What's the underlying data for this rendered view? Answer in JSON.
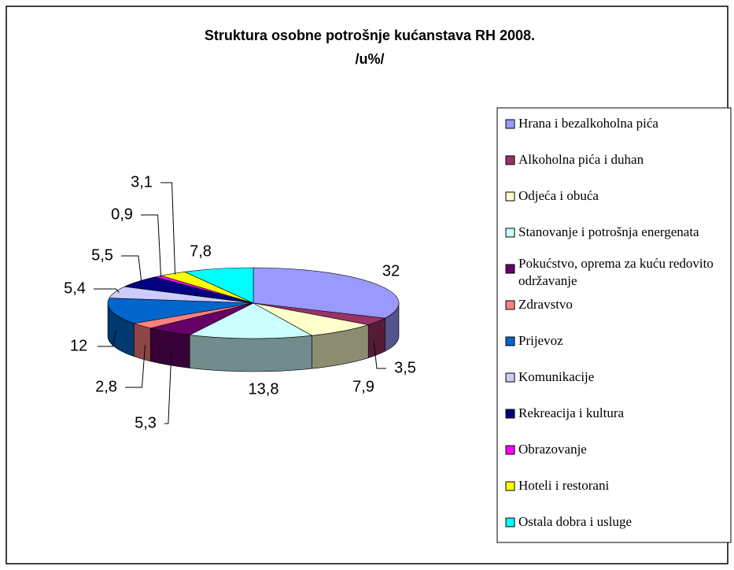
{
  "chart_data": {
    "type": "pie3d",
    "title": "Struktura osobne potrošnje kućanstava RH 2008.",
    "subtitle": "/u%/",
    "categories": [
      "Hrana i bezalkoholna pića",
      "Alkoholna pića i duhan",
      "Odjeća i obuća",
      "Stanovanje i potrošnja energenata",
      "Pokućstvo, oprema za kuću redovito održavanje",
      "Zdravstvo",
      "Prijevoz",
      "Komunikacije",
      "Rekreacija i kultura",
      "Obrazovanje",
      "Hoteli i restorani",
      "Ostala dobra i usluge"
    ],
    "values": [
      32,
      3.5,
      7.9,
      13.8,
      5.3,
      2.8,
      12,
      5.4,
      5.5,
      0.9,
      3.1,
      7.8
    ],
    "value_labels": [
      "32",
      "3,5",
      "7,9",
      "13,8",
      "5,3",
      "2,8",
      "12",
      "5,4",
      "5,5",
      "0,9",
      "3,1",
      "7,8"
    ],
    "colors": [
      "#9999ff",
      "#993366",
      "#ffffcc",
      "#ccffff",
      "#660066",
      "#ff8080",
      "#0066cc",
      "#ccccff",
      "#000080",
      "#ff00ff",
      "#ffff00",
      "#00ffff"
    ],
    "legend": "right"
  }
}
